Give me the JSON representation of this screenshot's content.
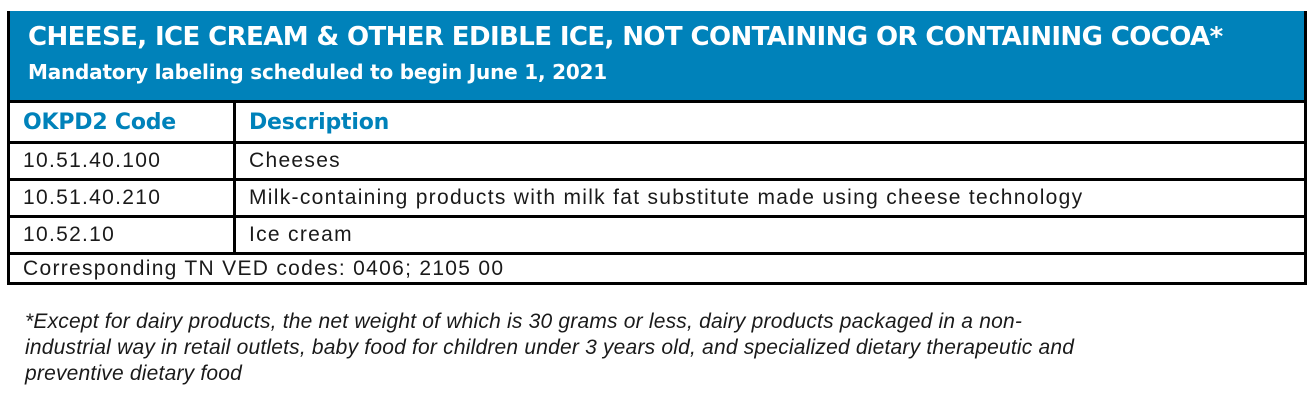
{
  "header": {
    "title": "CHEESE, ICE CREAM & OTHER EDIBLE ICE, NOT CONTAINING OR CONTAINING COCOA*",
    "subtitle": "Mandatory labeling scheduled to begin June 1, 2021"
  },
  "table": {
    "columns": [
      "OKPD2 Code",
      "Description"
    ],
    "rows": [
      {
        "code": "10.51.40.100",
        "description": "Cheeses"
      },
      {
        "code": "10.51.40.210",
        "description": "Milk-containing products with milk fat substitute made using cheese technology"
      },
      {
        "code": "10.52.10",
        "description": "Ice cream"
      }
    ],
    "footer": "Corresponding TN VED codes: 0406; 2105 00"
  },
  "footnote": {
    "lines": [
      "*Except for dairy products, the net weight of which is 30 grams or less, dairy products packaged in a non-",
      "industrial way in retail outlets, baby food for children under 3 years old, and specialized dietary therapeutic and",
      "preventive dietary food"
    ]
  },
  "colors": {
    "accent_blue": "#0082ba",
    "border_black": "#000000",
    "text_dark": "#1a1a1a",
    "header_text_white": "#ffffff"
  }
}
